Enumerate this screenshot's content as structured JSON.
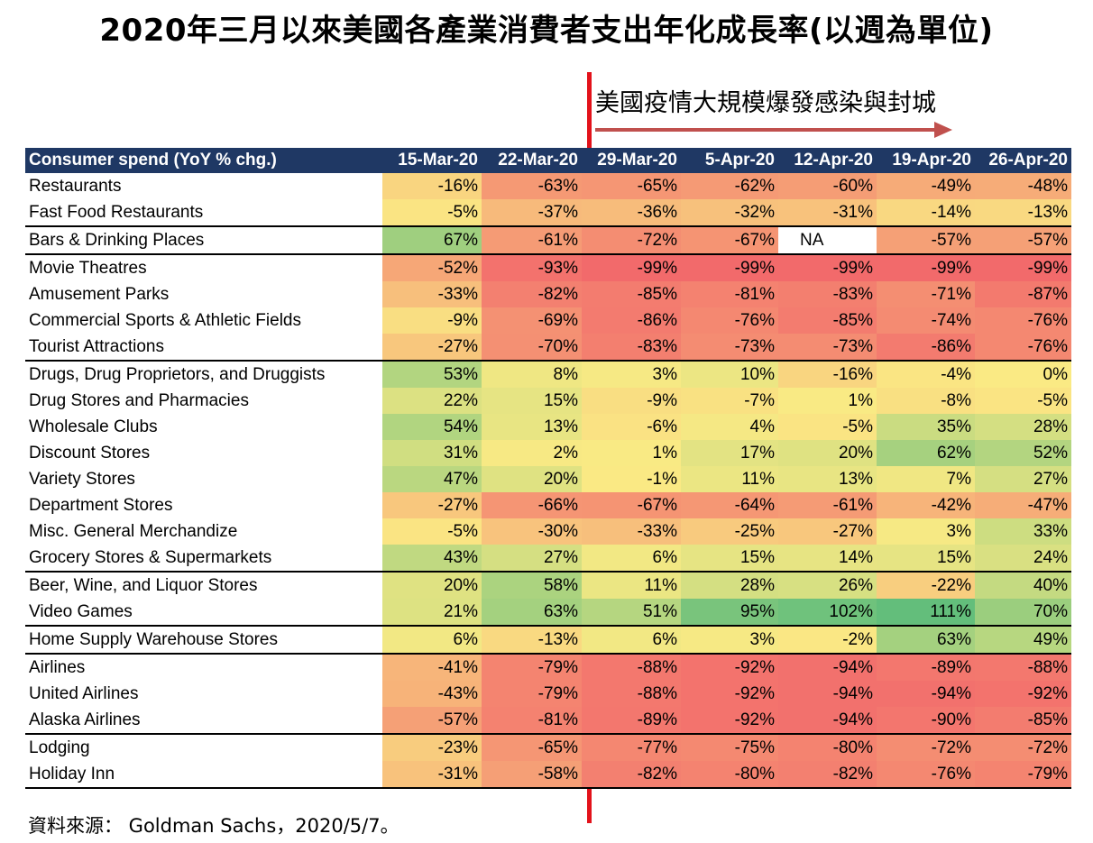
{
  "title": "2020年三月以來美國各產業消費者支出年化成長率(以週為單位)",
  "annotation": "美國疫情大規模爆發感染與封城",
  "source": "資料來源： Goldman Sachs，2020/5/7。",
  "colors": {
    "header_bg": "#1f3864",
    "divider_line": "#e3121b",
    "arrow": "#c0504d"
  },
  "chart_data": {
    "type": "table",
    "title": "2020年三月以來美國各產業消費者支出年化成長率(以週為單位)",
    "row_header": "Consumer spend (YoY % chg.)",
    "columns": [
      "15-Mar-20",
      "22-Mar-20",
      "29-Mar-20",
      "5-Apr-20",
      "12-Apr-20",
      "19-Apr-20",
      "26-Apr-20"
    ],
    "rows": [
      {
        "label": "Restaurants",
        "values": [
          "-16%",
          "-63%",
          "-65%",
          "-62%",
          "-60%",
          "-49%",
          "-48%"
        ],
        "group_start": false
      },
      {
        "label": "Fast Food Restaurants",
        "values": [
          "-5%",
          "-37%",
          "-36%",
          "-32%",
          "-31%",
          "-14%",
          "-13%"
        ],
        "group_start": false
      },
      {
        "label": "Bars & Drinking Places",
        "values": [
          "67%",
          "-61%",
          "-72%",
          "-67%",
          "NA",
          "-57%",
          "-57%"
        ],
        "group_start": true
      },
      {
        "label": "Movie Theatres",
        "values": [
          "-52%",
          "-93%",
          "-99%",
          "-99%",
          "-99%",
          "-99%",
          "-99%"
        ],
        "group_start": true
      },
      {
        "label": "Amusement Parks",
        "values": [
          "-33%",
          "-82%",
          "-85%",
          "-81%",
          "-83%",
          "-71%",
          "-87%"
        ],
        "group_start": false
      },
      {
        "label": "Commercial Sports & Athletic Fields",
        "values": [
          "-9%",
          "-69%",
          "-86%",
          "-76%",
          "-85%",
          "-74%",
          "-76%"
        ],
        "group_start": false
      },
      {
        "label": "Tourist Attractions",
        "values": [
          "-27%",
          "-70%",
          "-83%",
          "-73%",
          "-73%",
          "-86%",
          "-76%"
        ],
        "group_start": false
      },
      {
        "label": "Drugs, Drug Proprietors, and Druggists",
        "values": [
          "53%",
          "8%",
          "3%",
          "10%",
          "-16%",
          "-4%",
          "0%"
        ],
        "group_start": true
      },
      {
        "label": "Drug Stores and Pharmacies",
        "values": [
          "22%",
          "15%",
          "-9%",
          "-7%",
          "1%",
          "-8%",
          "-5%"
        ],
        "group_start": false
      },
      {
        "label": "Wholesale Clubs",
        "values": [
          "54%",
          "13%",
          "-6%",
          "4%",
          "-5%",
          "35%",
          "28%"
        ],
        "group_start": false
      },
      {
        "label": "Discount Stores",
        "values": [
          "31%",
          "2%",
          "1%",
          "17%",
          "20%",
          "62%",
          "52%"
        ],
        "group_start": false
      },
      {
        "label": "Variety Stores",
        "values": [
          "47%",
          "20%",
          "-1%",
          "11%",
          "13%",
          "7%",
          "27%"
        ],
        "group_start": false
      },
      {
        "label": "Department Stores",
        "values": [
          "-27%",
          "-66%",
          "-67%",
          "-64%",
          "-61%",
          "-42%",
          "-47%"
        ],
        "group_start": false
      },
      {
        "label": "Misc. General Merchandize",
        "values": [
          "-5%",
          "-30%",
          "-33%",
          "-25%",
          "-27%",
          "3%",
          "33%"
        ],
        "group_start": false
      },
      {
        "label": "Grocery Stores & Supermarkets",
        "values": [
          "43%",
          "27%",
          "6%",
          "15%",
          "14%",
          "15%",
          "24%"
        ],
        "group_start": false
      },
      {
        "label": "Beer, Wine, and Liquor Stores",
        "values": [
          "20%",
          "58%",
          "11%",
          "28%",
          "26%",
          "-22%",
          "40%"
        ],
        "group_start": true
      },
      {
        "label": "Video Games",
        "values": [
          "21%",
          "63%",
          "51%",
          "95%",
          "102%",
          "111%",
          "70%"
        ],
        "group_start": false
      },
      {
        "label": "Home Supply Warehouse Stores",
        "values": [
          "6%",
          "-13%",
          "6%",
          "3%",
          "-2%",
          "63%",
          "49%"
        ],
        "group_start": true
      },
      {
        "label": "Airlines",
        "values": [
          "-41%",
          "-79%",
          "-88%",
          "-92%",
          "-94%",
          "-89%",
          "-88%"
        ],
        "group_start": true
      },
      {
        "label": "United Airlines",
        "values": [
          "-43%",
          "-79%",
          "-88%",
          "-92%",
          "-94%",
          "-94%",
          "-92%"
        ],
        "group_start": false
      },
      {
        "label": "Alaska Airlines",
        "values": [
          "-57%",
          "-81%",
          "-89%",
          "-92%",
          "-94%",
          "-90%",
          "-85%"
        ],
        "group_start": false
      },
      {
        "label": "Lodging",
        "values": [
          "-23%",
          "-65%",
          "-77%",
          "-75%",
          "-80%",
          "-72%",
          "-72%"
        ],
        "group_start": true
      },
      {
        "label": "Holiday Inn",
        "values": [
          "-31%",
          "-58%",
          "-82%",
          "-80%",
          "-82%",
          "-76%",
          "-79%"
        ],
        "group_start": false
      }
    ]
  }
}
